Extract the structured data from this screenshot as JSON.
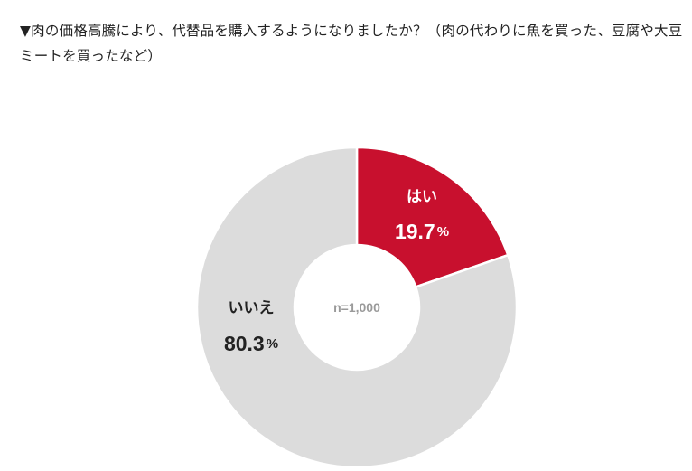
{
  "question": "▼肉の価格高騰により、代替品を購入するようになりましたか？（肉の代わりに魚を買った、豆腐や大豆ミートを買ったなど）",
  "chart_data": {
    "type": "pie",
    "donut": true,
    "sample_size": "n=1,000",
    "slices": [
      {
        "label": "はい",
        "value": 19.7,
        "value_text": "19.7",
        "unit": "%",
        "color": "#c8102e",
        "label_color": "#ffffff"
      },
      {
        "label": "いいえ",
        "value": 80.3,
        "value_text": "80.3",
        "unit": "%",
        "color": "#dcdcdc",
        "label_color": "#222222"
      }
    ],
    "start": "12 o'clock",
    "direction": "clockwise",
    "center_text_color": "#9a9a9a"
  }
}
